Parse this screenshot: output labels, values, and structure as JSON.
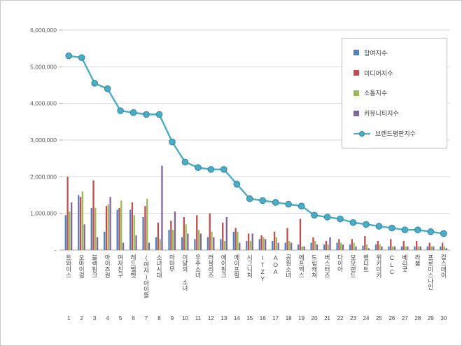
{
  "chart_data": {
    "type": "bar",
    "subtype": "grouped-bars-with-line-overlay",
    "title": "",
    "xlabel": "",
    "ylabel": "",
    "ylim": [
      0,
      6000000
    ],
    "ytick_interval": 1000000,
    "ytick_labels_top_to_bottom": [
      "6,000,000",
      "5,000,000",
      "4,000,000",
      "3,000,000",
      "2,000,000",
      "1,000,000",
      "-"
    ],
    "grid": true,
    "legend_position": "top-right",
    "categories": [
      "트와이스",
      "오마이걸",
      "블랙핑크",
      "아이즈원",
      "여자친구",
      "레드벨벳",
      "(여자)아이들",
      "소녀시대",
      "마마무",
      "이달의 소녀",
      "우주소녀",
      "러블리즈",
      "에이핑크",
      "에이프릴",
      "시그니처",
      "ITZY",
      "AOA",
      "공원소녀",
      "에프엑스",
      "드림캐쳐",
      "버스터즈",
      "다이아",
      "모모랜드",
      "밴디트",
      "위키미키",
      "CLC",
      "베리굿",
      "라붐",
      "프로미스나인",
      "걸스데이"
    ],
    "rank_labels": [
      "1",
      "2",
      "3",
      "4",
      "5",
      "6",
      "7",
      "8",
      "9",
      "10",
      "11",
      "12",
      "13",
      "14",
      "15",
      "16",
      "17",
      "18",
      "19",
      "20",
      "21",
      "22",
      "23",
      "24",
      "25",
      "26",
      "27",
      "28",
      "29",
      "30"
    ],
    "series": [
      {
        "name": "참여지수",
        "type": "bar",
        "color": "#4F81BD",
        "values": [
          950000,
          1500000,
          1150000,
          500000,
          1100000,
          1100000,
          900000,
          350000,
          550000,
          350000,
          300000,
          350000,
          300000,
          500000,
          250000,
          300000,
          250000,
          200000,
          150000,
          200000,
          150000,
          200000,
          150000,
          120000,
          150000,
          100000,
          100000,
          100000,
          100000,
          100000
        ]
      },
      {
        "name": "미디어지수",
        "type": "bar",
        "color": "#C0504D",
        "values": [
          2000000,
          1450000,
          1900000,
          1200000,
          1150000,
          1300000,
          1200000,
          750000,
          800000,
          900000,
          950000,
          1000000,
          750000,
          600000,
          450000,
          400000,
          500000,
          600000,
          850000,
          350000,
          250000,
          300000,
          300000,
          380000,
          250000,
          300000,
          250000,
          250000,
          200000,
          200000
        ]
      },
      {
        "name": "소통지수",
        "type": "bar",
        "color": "#9BBB59",
        "values": [
          1050000,
          1600000,
          1150000,
          1250000,
          1350000,
          950000,
          1400000,
          300000,
          550000,
          700000,
          550000,
          500000,
          250000,
          500000,
          250000,
          350000,
          350000,
          250000,
          100000,
          250000,
          150000,
          200000,
          200000,
          150000,
          150000,
          100000,
          100000,
          100000,
          100000,
          100000
        ]
      },
      {
        "name": "커뮤니티지수",
        "type": "bar",
        "color": "#8064A2",
        "values": [
          1300000,
          700000,
          350000,
          1450000,
          200000,
          400000,
          200000,
          2300000,
          1050000,
          450000,
          450000,
          350000,
          900000,
          200000,
          450000,
          300000,
          200000,
          200000,
          100000,
          150000,
          350000,
          150000,
          100000,
          50000,
          100000,
          100000,
          100000,
          100000,
          100000,
          50000
        ]
      },
      {
        "name": "브랜드평판지수",
        "type": "line",
        "color": "#4BACC6",
        "marker_stroke": "#31859B",
        "values": [
          5300000,
          5250000,
          4550000,
          4400000,
          3800000,
          3750000,
          3700000,
          3700000,
          2950000,
          2400000,
          2250000,
          2200000,
          2200000,
          1800000,
          1400000,
          1350000,
          1300000,
          1250000,
          1200000,
          950000,
          900000,
          850000,
          750000,
          700000,
          650000,
          600000,
          550000,
          550000,
          500000,
          450000
        ]
      }
    ],
    "colors": {
      "gridline": "#d9d9d9",
      "axis_line": "#a6a6a6",
      "tick_label": "#595959",
      "category_label": "#3f3f3f"
    }
  }
}
